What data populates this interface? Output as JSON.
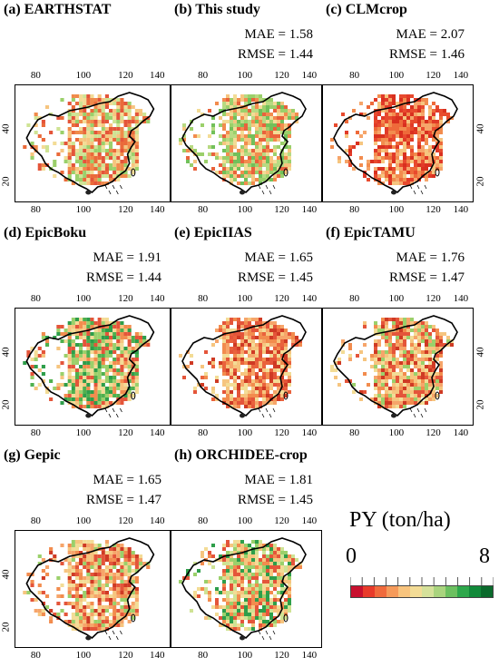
{
  "panels": [
    {
      "title": "(a) EARTHSTAT",
      "mae": "",
      "rmse": "",
      "scheme": "a"
    },
    {
      "title": "(b) This study",
      "mae": "MAE = 1.58",
      "rmse": "RMSE = 1.44",
      "scheme": "b"
    },
    {
      "title": "(c) CLMcrop",
      "mae": "MAE = 2.07",
      "rmse": "RMSE = 1.46",
      "scheme": "c"
    },
    {
      "title": "(d) EpicBoku",
      "mae": "MAE = 1.91",
      "rmse": "RMSE = 1.44",
      "scheme": "d"
    },
    {
      "title": "(e) EpicIIAS",
      "mae": "MAE = 1.65",
      "rmse": "RMSE = 1.45",
      "scheme": "e"
    },
    {
      "title": "(f) EpicTAMU",
      "mae": "MAE = 1.76",
      "rmse": "RMSE = 1.47",
      "scheme": "f"
    },
    {
      "title": "(g) Gepic",
      "mae": "MAE = 1.65",
      "rmse": "RMSE = 1.47",
      "scheme": "g"
    },
    {
      "title": "(h) ORCHIDEE-crop",
      "mae": "MAE = 1.81",
      "rmse": "RMSE = 1.45",
      "scheme": "h"
    }
  ],
  "axis": {
    "x_ticks": [
      "80",
      "100",
      "120",
      "140"
    ],
    "y_ticks": [
      "40",
      "20"
    ]
  },
  "legend": {
    "title": "PY (ton/ha)",
    "min": "0",
    "max": "8",
    "colors": [
      "#c8102e",
      "#e83a2a",
      "#f06a3c",
      "#f59a5a",
      "#f8c47e",
      "#f3dc96",
      "#d5e19a",
      "#a9d47e",
      "#6cc060",
      "#2ea84c",
      "#118a3a",
      "#0a6a2c"
    ]
  },
  "colors": {
    "red": "#d7301f",
    "orange": "#f28c4e",
    "tan": "#f6c57f",
    "green": "#9bd06b",
    "darkgreen": "#2e9e4a"
  }
}
